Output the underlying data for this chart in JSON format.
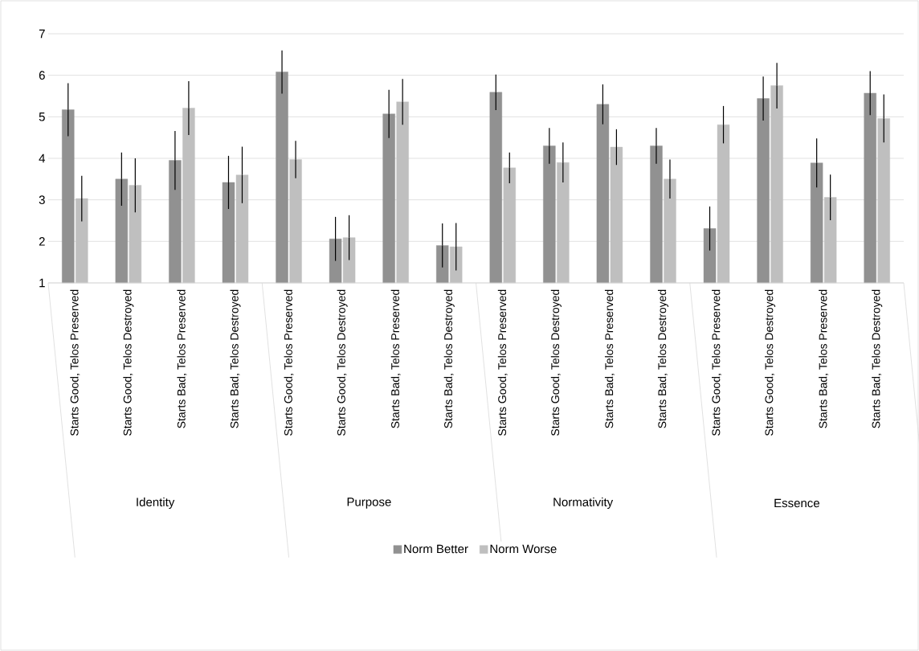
{
  "chart_data": {
    "type": "bar",
    "categories": [
      "Starts Good, Telos Preserved",
      "Starts Good, Telos Destroyed",
      "Starts Bad, Telos Preserved",
      "Starts Bad, Telos Destroyed",
      "Starts Good, Telos Preserved",
      "Starts Good, Telos Destroyed",
      "Starts Bad, Telos Preserved",
      "Starts Bad, Telos Destroyed",
      "Starts Good, Telos Preserved",
      "Starts Good, Telos Destroyed",
      "Starts Bad, Telos Preserved",
      "Starts Bad, Telos Destroyed",
      "Starts Good, Telos Preserved",
      "Starts Good, Telos Destroyed",
      "Starts Bad, Telos Preserved",
      "Starts Bad, Telos Destroyed"
    ],
    "series": [
      {
        "name": "Norm Better",
        "color": "#919191",
        "values": [
          5.17,
          3.5,
          3.95,
          3.42,
          6.08,
          2.06,
          5.07,
          1.9,
          5.59,
          4.3,
          5.3,
          4.3,
          2.31,
          5.44,
          3.89,
          5.57
        ],
        "errors": [
          0.64,
          0.64,
          0.71,
          0.64,
          0.52,
          0.53,
          0.58,
          0.53,
          0.43,
          0.43,
          0.48,
          0.43,
          0.53,
          0.53,
          0.59,
          0.53
        ]
      },
      {
        "name": "Norm Worse",
        "color": "#bfbfbf",
        "values": [
          3.03,
          3.35,
          5.21,
          3.6,
          3.97,
          2.09,
          5.36,
          1.87,
          3.77,
          3.9,
          4.27,
          3.5,
          4.81,
          5.75,
          3.06,
          4.96
        ],
        "errors": [
          0.55,
          0.65,
          0.65,
          0.68,
          0.45,
          0.54,
          0.55,
          0.57,
          0.37,
          0.48,
          0.43,
          0.47,
          0.45,
          0.55,
          0.55,
          0.58
        ]
      }
    ],
    "annotations": [
      "Identity",
      "Purpose",
      "Normativity",
      "Essence"
    ],
    "ylim": [
      1,
      7
    ],
    "yticks": [
      1,
      2,
      3,
      4,
      5,
      6,
      7
    ],
    "grid": "y",
    "legend": "bottom"
  }
}
